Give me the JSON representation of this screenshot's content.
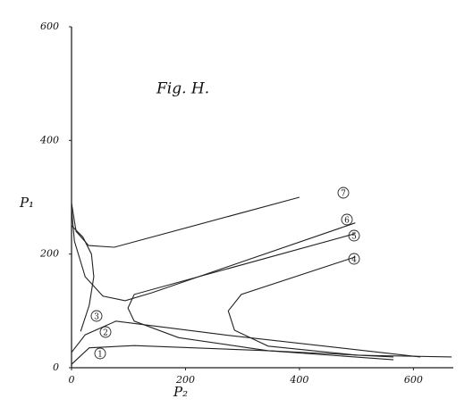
{
  "chart_data": {
    "type": "line",
    "title": "Fig. H.",
    "x_label": "P₂",
    "y_label": "P₁",
    "xlim": [
      0,
      670
    ],
    "ylim": [
      0,
      600
    ],
    "xticks": [
      0,
      200,
      400,
      600
    ],
    "yticks": [
      0,
      200,
      400,
      600
    ],
    "series": [
      {
        "name": "7",
        "color": "#222",
        "x": [
          400,
          75,
          30,
          8,
          0
        ],
        "values": [
          300,
          212,
          215,
          240,
          290
        ]
      },
      {
        "name": "6",
        "color": "#222",
        "x": [
          498,
          141,
          94,
          55,
          24,
          5,
          0
        ],
        "values": [
          255,
          132,
          118,
          126,
          160,
          223,
          280
        ]
      },
      {
        "name": "5",
        "color": "#222",
        "x": [
          498,
          110,
          99,
          110,
          188,
          345,
          565
        ],
        "values": [
          236,
          129,
          105,
          82,
          53,
          30,
          19
        ]
      },
      {
        "name": "4",
        "color": "#222",
        "x": [
          498,
          298,
          275,
          286,
          345,
          502,
          667
        ],
        "values": [
          195,
          129,
          100,
          66,
          38,
          22,
          19
        ]
      },
      {
        "name": "3",
        "color": "#222",
        "x": [
          16,
          31,
          39,
          35,
          20,
          0
        ],
        "values": [
          64,
          110,
          160,
          200,
          230,
          250
        ]
      },
      {
        "name": "2",
        "color": "#222",
        "x": [
          0,
          24,
          78,
          267,
          612
        ],
        "values": [
          27,
          58,
          82,
          58,
          19
        ]
      },
      {
        "name": "1",
        "color": "#222",
        "x": [
          0,
          31,
          110,
          345,
          565
        ],
        "values": [
          6,
          35,
          39,
          30,
          14
        ]
      }
    ]
  }
}
